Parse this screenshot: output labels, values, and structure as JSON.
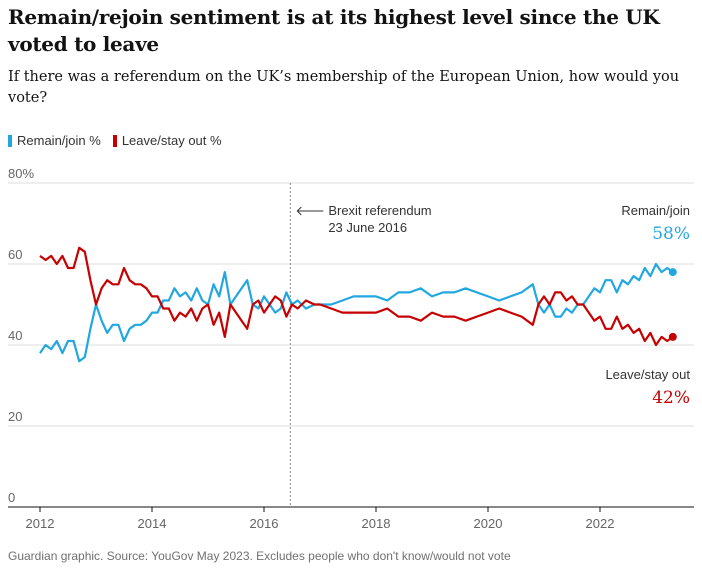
{
  "chart_data": {
    "type": "line",
    "title": "Remain/rejoin sentiment is at its highest level since the UK voted to leave",
    "subtitle": "If there was a referendum on the UK’s membership of the European Union, how would you vote?",
    "source": "Guardian graphic. Source: YouGov May 2023. Excludes people who don't know/would not vote",
    "xlim": [
      2011.9,
      2023.6
    ],
    "ylim": [
      0,
      80
    ],
    "x_ticks": [
      2012,
      2014,
      2016,
      2018,
      2020,
      2022
    ],
    "x_tick_labels": [
      "2012",
      "2014",
      "2016",
      "2018",
      "2020",
      "2022"
    ],
    "y_ticks": [
      0,
      20,
      40,
      60,
      80
    ],
    "y_tick_labels": [
      "0",
      "20",
      "40",
      "60",
      "80%"
    ],
    "grid": true,
    "legend_position": "top-left",
    "annotation": {
      "x": 2016.47,
      "line1": "Brexit referendum",
      "line2": "23 June 2016"
    },
    "end_labels": {
      "remain_name": "Remain/join",
      "remain_value": "58%",
      "leave_name": "Leave/stay out",
      "leave_value": "42%"
    },
    "colors": {
      "remain": "#22a7e0",
      "leave": "#c70000"
    },
    "series": [
      {
        "name": "Remain/join %",
        "color": "#22a7e0",
        "points": [
          [
            2012.0,
            38
          ],
          [
            2012.1,
            40
          ],
          [
            2012.2,
            39
          ],
          [
            2012.3,
            41
          ],
          [
            2012.4,
            38
          ],
          [
            2012.5,
            41
          ],
          [
            2012.6,
            41
          ],
          [
            2012.7,
            36
          ],
          [
            2012.8,
            37
          ],
          [
            2012.9,
            44
          ],
          [
            2013.0,
            50
          ],
          [
            2013.1,
            46
          ],
          [
            2013.2,
            43
          ],
          [
            2013.3,
            45
          ],
          [
            2013.4,
            45
          ],
          [
            2013.5,
            41
          ],
          [
            2013.6,
            44
          ],
          [
            2013.7,
            45
          ],
          [
            2013.8,
            45
          ],
          [
            2013.9,
            46
          ],
          [
            2014.0,
            48
          ],
          [
            2014.1,
            48
          ],
          [
            2014.2,
            51
          ],
          [
            2014.3,
            51
          ],
          [
            2014.4,
            54
          ],
          [
            2014.5,
            52
          ],
          [
            2014.6,
            53
          ],
          [
            2014.7,
            51
          ],
          [
            2014.8,
            54
          ],
          [
            2014.9,
            51
          ],
          [
            2015.0,
            50
          ],
          [
            2015.1,
            55
          ],
          [
            2015.2,
            52
          ],
          [
            2015.3,
            58
          ],
          [
            2015.4,
            50
          ],
          [
            2015.5,
            52
          ],
          [
            2015.6,
            54
          ],
          [
            2015.7,
            56
          ],
          [
            2015.8,
            50
          ],
          [
            2015.9,
            49
          ],
          [
            2016.0,
            52
          ],
          [
            2016.1,
            50
          ],
          [
            2016.2,
            48
          ],
          [
            2016.3,
            49
          ],
          [
            2016.4,
            53
          ],
          [
            2016.5,
            50
          ],
          [
            2016.6,
            51
          ],
          [
            2016.75,
            49
          ],
          [
            2016.9,
            50
          ],
          [
            2017.0,
            50
          ],
          [
            2017.2,
            50
          ],
          [
            2017.4,
            51
          ],
          [
            2017.6,
            52
          ],
          [
            2017.8,
            52
          ],
          [
            2018.0,
            52
          ],
          [
            2018.2,
            51
          ],
          [
            2018.4,
            53
          ],
          [
            2018.6,
            53
          ],
          [
            2018.8,
            54
          ],
          [
            2019.0,
            52
          ],
          [
            2019.2,
            53
          ],
          [
            2019.4,
            53
          ],
          [
            2019.6,
            54
          ],
          [
            2019.8,
            53
          ],
          [
            2020.0,
            52
          ],
          [
            2020.2,
            51
          ],
          [
            2020.4,
            52
          ],
          [
            2020.6,
            53
          ],
          [
            2020.8,
            55
          ],
          [
            2020.9,
            50
          ],
          [
            2021.0,
            48
          ],
          [
            2021.1,
            50
          ],
          [
            2021.2,
            47
          ],
          [
            2021.3,
            47
          ],
          [
            2021.4,
            49
          ],
          [
            2021.5,
            48
          ],
          [
            2021.6,
            50
          ],
          [
            2021.7,
            50
          ],
          [
            2021.8,
            52
          ],
          [
            2021.9,
            54
          ],
          [
            2022.0,
            53
          ],
          [
            2022.1,
            56
          ],
          [
            2022.2,
            56
          ],
          [
            2022.3,
            53
          ],
          [
            2022.4,
            56
          ],
          [
            2022.5,
            55
          ],
          [
            2022.6,
            57
          ],
          [
            2022.7,
            56
          ],
          [
            2022.8,
            59
          ],
          [
            2022.9,
            57
          ],
          [
            2023.0,
            60
          ],
          [
            2023.1,
            58
          ],
          [
            2023.2,
            59
          ],
          [
            2023.3,
            58
          ]
        ]
      },
      {
        "name": "Leave/stay out %",
        "color": "#c70000",
        "points": [
          [
            2012.0,
            62
          ],
          [
            2012.1,
            61
          ],
          [
            2012.2,
            62
          ],
          [
            2012.3,
            60
          ],
          [
            2012.4,
            62
          ],
          [
            2012.5,
            59
          ],
          [
            2012.6,
            59
          ],
          [
            2012.7,
            64
          ],
          [
            2012.8,
            63
          ],
          [
            2012.9,
            56
          ],
          [
            2013.0,
            50
          ],
          [
            2013.1,
            54
          ],
          [
            2013.2,
            56
          ],
          [
            2013.3,
            55
          ],
          [
            2013.4,
            55
          ],
          [
            2013.5,
            59
          ],
          [
            2013.6,
            56
          ],
          [
            2013.7,
            55
          ],
          [
            2013.8,
            55
          ],
          [
            2013.9,
            54
          ],
          [
            2014.0,
            52
          ],
          [
            2014.1,
            52
          ],
          [
            2014.2,
            49
          ],
          [
            2014.3,
            49
          ],
          [
            2014.4,
            46
          ],
          [
            2014.5,
            48
          ],
          [
            2014.6,
            47
          ],
          [
            2014.7,
            49
          ],
          [
            2014.8,
            46
          ],
          [
            2014.9,
            49
          ],
          [
            2015.0,
            50
          ],
          [
            2015.1,
            45
          ],
          [
            2015.2,
            48
          ],
          [
            2015.3,
            42
          ],
          [
            2015.4,
            50
          ],
          [
            2015.5,
            48
          ],
          [
            2015.6,
            46
          ],
          [
            2015.7,
            44
          ],
          [
            2015.8,
            50
          ],
          [
            2015.9,
            51
          ],
          [
            2016.0,
            48
          ],
          [
            2016.1,
            50
          ],
          [
            2016.2,
            52
          ],
          [
            2016.3,
            51
          ],
          [
            2016.4,
            47
          ],
          [
            2016.5,
            50
          ],
          [
            2016.6,
            49
          ],
          [
            2016.75,
            51
          ],
          [
            2016.9,
            50
          ],
          [
            2017.0,
            50
          ],
          [
            2017.2,
            49
          ],
          [
            2017.4,
            48
          ],
          [
            2017.6,
            48
          ],
          [
            2017.8,
            48
          ],
          [
            2018.0,
            48
          ],
          [
            2018.2,
            49
          ],
          [
            2018.4,
            47
          ],
          [
            2018.6,
            47
          ],
          [
            2018.8,
            46
          ],
          [
            2019.0,
            48
          ],
          [
            2019.2,
            47
          ],
          [
            2019.4,
            47
          ],
          [
            2019.6,
            46
          ],
          [
            2019.8,
            47
          ],
          [
            2020.0,
            48
          ],
          [
            2020.2,
            49
          ],
          [
            2020.4,
            48
          ],
          [
            2020.6,
            47
          ],
          [
            2020.8,
            45
          ],
          [
            2020.9,
            50
          ],
          [
            2021.0,
            52
          ],
          [
            2021.1,
            50
          ],
          [
            2021.2,
            53
          ],
          [
            2021.3,
            53
          ],
          [
            2021.4,
            51
          ],
          [
            2021.5,
            52
          ],
          [
            2021.6,
            50
          ],
          [
            2021.7,
            50
          ],
          [
            2021.8,
            48
          ],
          [
            2021.9,
            46
          ],
          [
            2022.0,
            47
          ],
          [
            2022.1,
            44
          ],
          [
            2022.2,
            44
          ],
          [
            2022.3,
            47
          ],
          [
            2022.4,
            44
          ],
          [
            2022.5,
            45
          ],
          [
            2022.6,
            43
          ],
          [
            2022.7,
            44
          ],
          [
            2022.8,
            41
          ],
          [
            2022.9,
            43
          ],
          [
            2023.0,
            40
          ],
          [
            2023.1,
            42
          ],
          [
            2023.2,
            41
          ],
          [
            2023.3,
            42
          ]
        ]
      }
    ]
  }
}
